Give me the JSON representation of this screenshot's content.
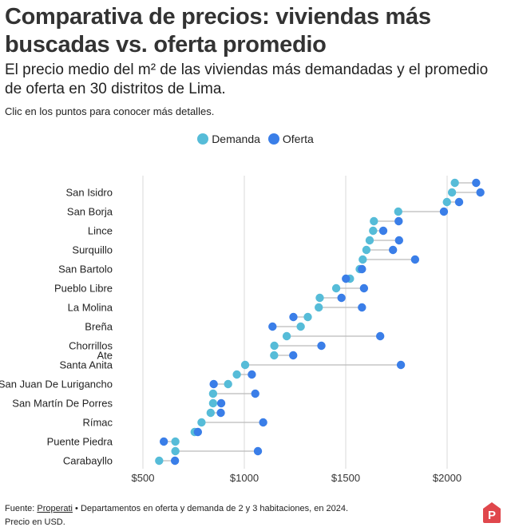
{
  "header": {
    "title": "Comparativa de precios: viviendas más buscadas vs. oferta promedio",
    "subtitle": "El precio medio del m² de las viviendas más demandadas y el promedio de oferta en 30 distritos de Lima.",
    "note": "Clic en los puntos para conocer más detalles."
  },
  "footer": {
    "source_prefix": "Fuente: ",
    "source_link": "Properati",
    "source_rest": " • Departamentos en oferta y demanda de 2 y 3 habitaciones, en 2024.",
    "currency_note": "Precio en USD.",
    "logo_letter": "P"
  },
  "colors": {
    "demanda": "#56bcd8",
    "oferta": "#3a7ee8",
    "grid": "#e6e6e6",
    "connector": "#bbbbbb"
  },
  "chart_data": {
    "type": "dumbbell",
    "title": "Comparativa de precios: viviendas más buscadas vs. oferta promedio",
    "xlabel": "",
    "ylabel": "",
    "xlim": [
      430,
      2230
    ],
    "xticks": [
      500,
      1000,
      1500,
      2000
    ],
    "xtick_labels": [
      "$500",
      "$1000",
      "$1500",
      "$2000"
    ],
    "legend": {
      "position": "top-center",
      "entries": [
        "Demanda",
        "Oferta"
      ]
    },
    "grid": "vertical",
    "categories": [
      "",
      "San Isidro",
      "",
      "San Borja",
      "",
      "Lince",
      "",
      "Surquillo",
      "",
      "San Bartolo",
      "",
      "Pueblo Libre",
      "",
      "La Molina",
      "",
      "Breña",
      "",
      "Chorrillos",
      "Ate",
      "Santa Anita",
      "",
      "San Juan De Lurigancho",
      "",
      "San Martín De Porres",
      "",
      "Rímac",
      "",
      "Puente Piedra",
      "",
      "Carabayllo"
    ],
    "series": [
      {
        "name": "Demanda",
        "values": [
          2038,
          2024,
          1999,
          1759,
          1639,
          1635,
          1618,
          1602,
          1584,
          1569,
          1521,
          1453,
          1372,
          1367,
          1313,
          1278,
          1209,
          1148,
          1147,
          1004,
          963,
          920,
          846,
          846,
          834,
          789,
          755,
          660,
          660,
          580
        ]
      },
      {
        "name": "Oferta",
        "values": [
          2143,
          2164,
          2059,
          1984,
          1761,
          1685,
          1763,
          1733,
          1842,
          1580,
          1501,
          1590,
          1479,
          1580,
          1242,
          1139,
          1670,
          1380,
          1241,
          1772,
          1037,
          849,
          1054,
          886,
          884,
          1093,
          771,
          603,
          1067,
          658
        ]
      }
    ]
  }
}
